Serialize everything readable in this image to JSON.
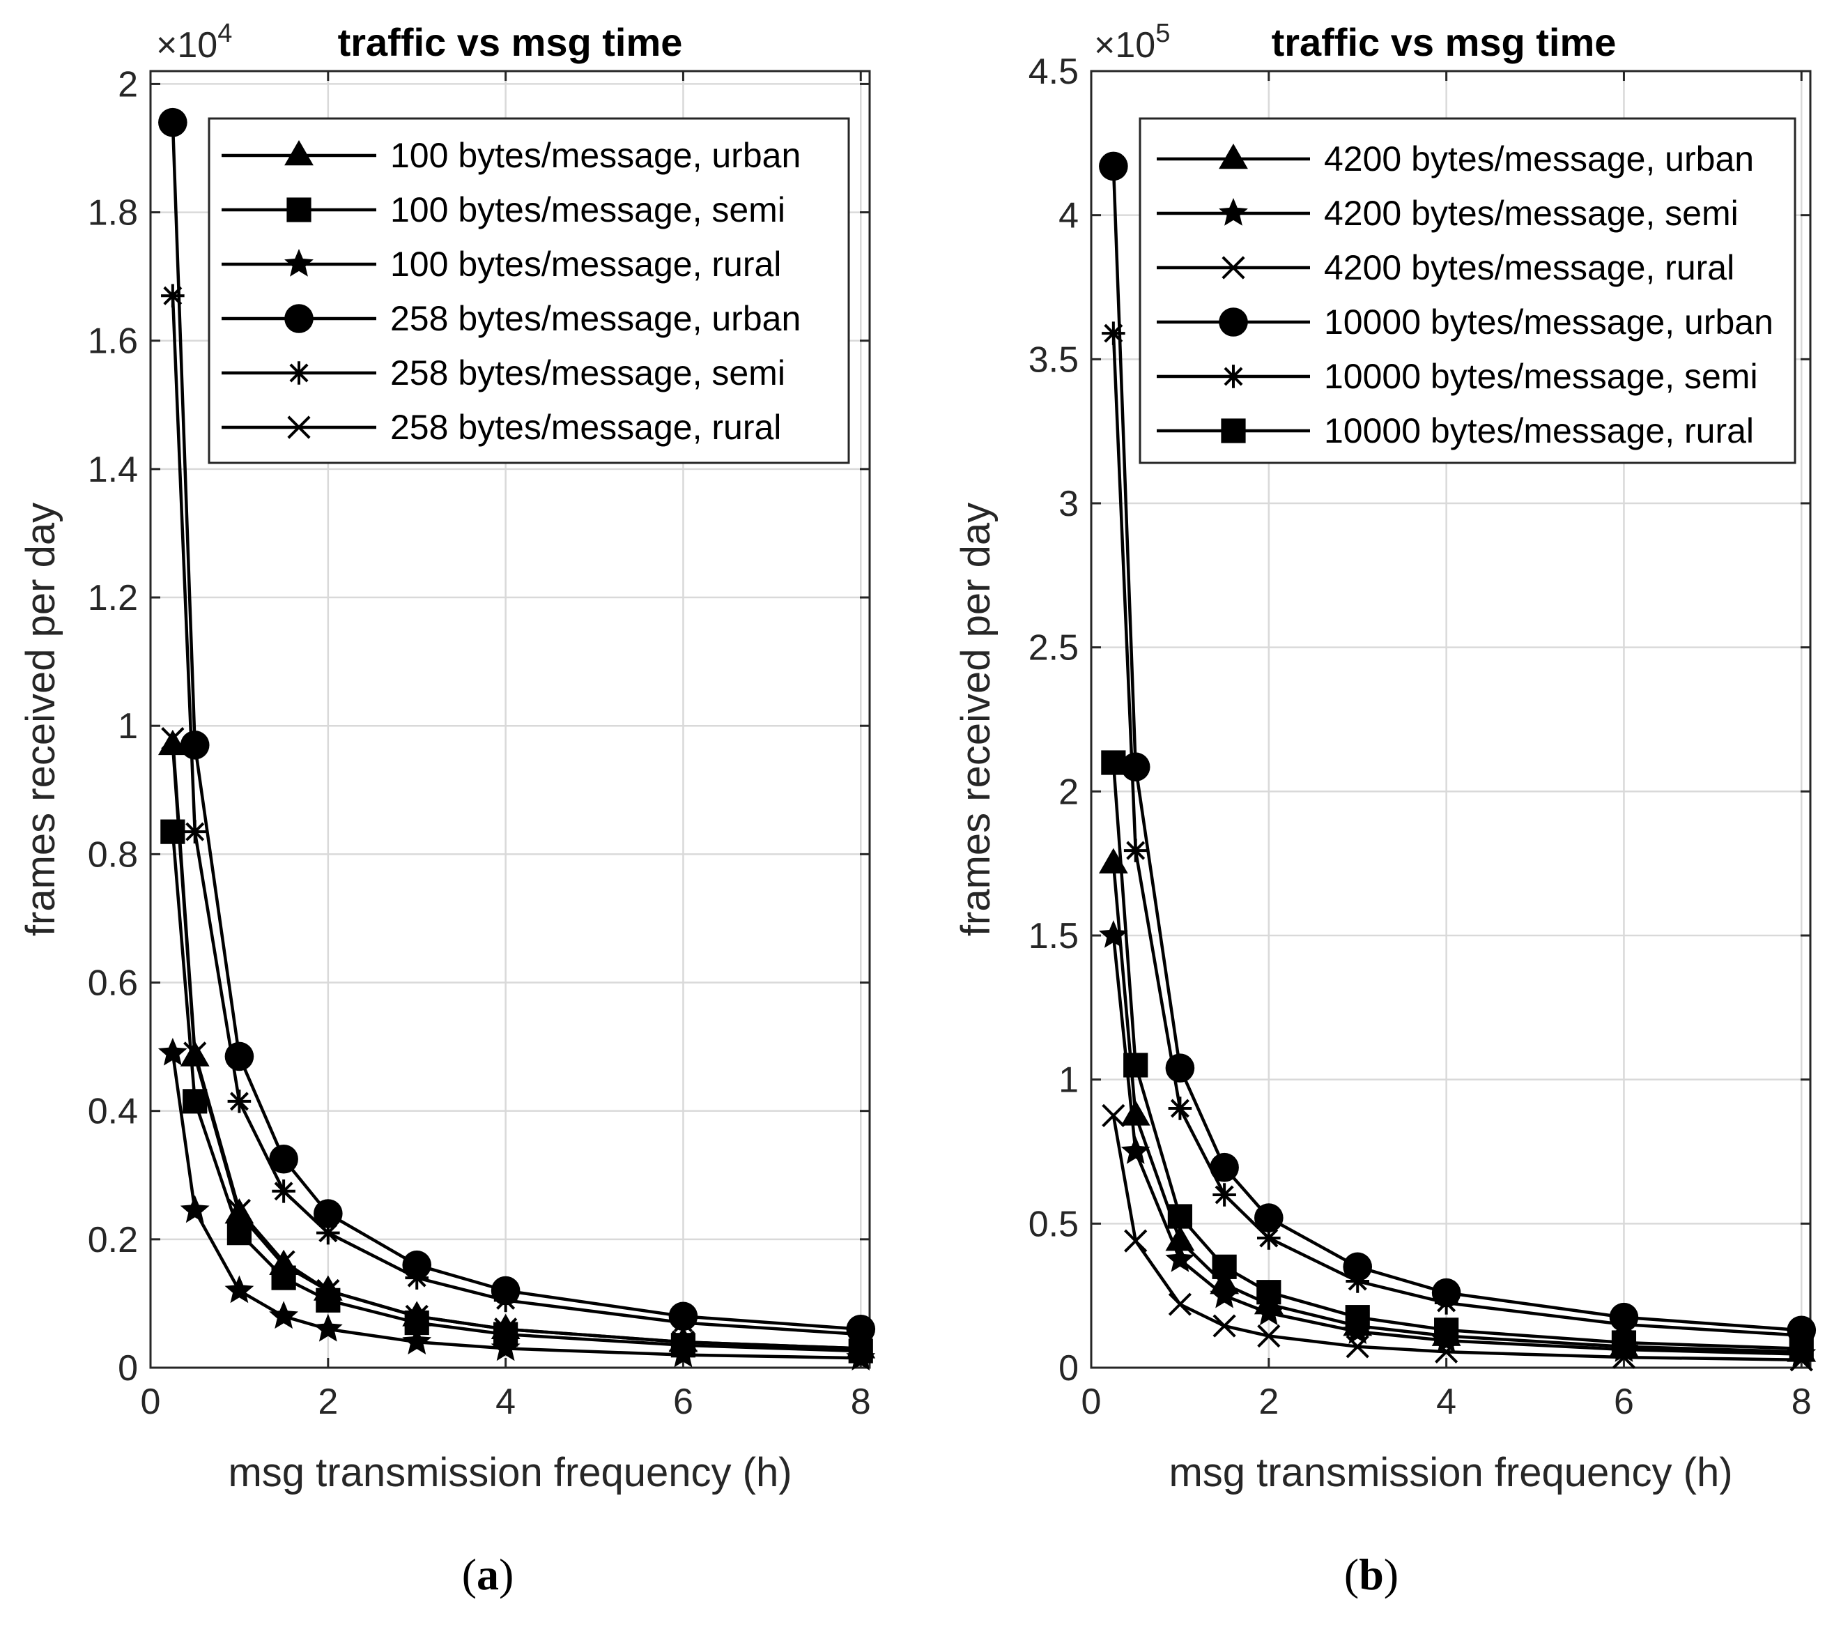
{
  "chart_data": [
    {
      "type": "line",
      "panel_label": "a",
      "title": "traffic vs msg time",
      "xlabel": "msg transmission frequency (h)",
      "ylabel": "frames received per day",
      "y_multiplier_base": "×10",
      "y_multiplier_exp": "4",
      "xlim": [
        0,
        8.1
      ],
      "ylim": [
        0,
        2.02
      ],
      "xticks": [
        0,
        2,
        4,
        6,
        8
      ],
      "xtick_labels": [
        "0",
        "2",
        "4",
        "6",
        "8"
      ],
      "yticks": [
        0,
        0.2,
        0.4,
        0.6,
        0.8,
        1,
        1.2,
        1.4,
        1.6,
        1.8,
        2
      ],
      "ytick_labels": [
        "0",
        "0.2",
        "0.4",
        "0.6",
        "0.8",
        "1",
        "1.2",
        "1.4",
        "1.6",
        "1.8",
        "2"
      ],
      "grid": true,
      "legend_position": "top-right",
      "x": [
        0.25,
        0.5,
        1,
        1.5,
        2,
        3,
        4,
        6,
        8
      ],
      "series": [
        {
          "name": "100 bytes/message, urban",
          "marker": "triangle",
          "values": [
            0.97,
            0.485,
            0.24,
            0.16,
            0.12,
            0.08,
            0.06,
            0.04,
            0.03
          ]
        },
        {
          "name": "100 bytes/message, semi",
          "marker": "square",
          "values": [
            0.835,
            0.415,
            0.21,
            0.14,
            0.105,
            0.07,
            0.052,
            0.035,
            0.026
          ]
        },
        {
          "name": "100 bytes/message, rural",
          "marker": "star",
          "values": [
            0.49,
            0.245,
            0.12,
            0.08,
            0.06,
            0.04,
            0.03,
            0.02,
            0.015
          ]
        },
        {
          "name": "258 bytes/message, urban",
          "marker": "circle",
          "values": [
            1.94,
            0.97,
            0.485,
            0.325,
            0.24,
            0.16,
            0.12,
            0.08,
            0.06
          ]
        },
        {
          "name": "258 bytes/message, semi",
          "marker": "asterisk",
          "values": [
            1.67,
            0.835,
            0.415,
            0.275,
            0.21,
            0.14,
            0.105,
            0.07,
            0.052
          ]
        },
        {
          "name": "258 bytes/message, rural",
          "marker": "x",
          "values": [
            0.98,
            0.49,
            0.245,
            0.165,
            0.12,
            0.08,
            0.06,
            0.04,
            0.03
          ]
        }
      ]
    },
    {
      "type": "line",
      "panel_label": "b",
      "title": "traffic vs msg time",
      "xlabel": "msg transmission frequency (h)",
      "ylabel": "frames received per day",
      "y_multiplier_base": "×10",
      "y_multiplier_exp": "5",
      "xlim": [
        0,
        8.1
      ],
      "ylim": [
        0,
        4.5
      ],
      "xticks": [
        0,
        2,
        4,
        6,
        8
      ],
      "xtick_labels": [
        "0",
        "2",
        "4",
        "6",
        "8"
      ],
      "yticks": [
        0,
        0.5,
        1,
        1.5,
        2,
        2.5,
        3,
        3.5,
        4,
        4.5
      ],
      "ytick_labels": [
        "0",
        "0.5",
        "1",
        "1.5",
        "2",
        "2.5",
        "3",
        "3.5",
        "4",
        "4.5"
      ],
      "grid": true,
      "legend_position": "top-right",
      "x": [
        0.25,
        0.5,
        1,
        1.5,
        2,
        3,
        4,
        6,
        8
      ],
      "series": [
        {
          "name": "4200 bytes/message, urban",
          "marker": "triangle",
          "values": [
            1.75,
            0.875,
            0.44,
            0.29,
            0.22,
            0.145,
            0.11,
            0.073,
            0.055
          ]
        },
        {
          "name": "4200 bytes/message, semi",
          "marker": "star",
          "values": [
            1.5,
            0.75,
            0.375,
            0.25,
            0.19,
            0.125,
            0.094,
            0.063,
            0.047
          ]
        },
        {
          "name": "4200 bytes/message, rural",
          "marker": "x",
          "values": [
            0.875,
            0.44,
            0.22,
            0.145,
            0.11,
            0.073,
            0.055,
            0.036,
            0.027
          ]
        },
        {
          "name": "10000 bytes/message, urban",
          "marker": "circle",
          "values": [
            4.17,
            2.085,
            1.04,
            0.695,
            0.52,
            0.35,
            0.26,
            0.175,
            0.13
          ]
        },
        {
          "name": "10000 bytes/message, semi",
          "marker": "asterisk",
          "values": [
            3.59,
            1.795,
            0.9,
            0.6,
            0.45,
            0.3,
            0.225,
            0.15,
            0.112
          ]
        },
        {
          "name": "10000 bytes/message, rural",
          "marker": "square",
          "values": [
            2.1,
            1.05,
            0.525,
            0.35,
            0.262,
            0.175,
            0.131,
            0.087,
            0.066
          ]
        }
      ]
    }
  ],
  "captions": [
    {
      "open": "(",
      "letter": "a",
      "close": ")"
    },
    {
      "open": "(",
      "letter": "b",
      "close": ")"
    }
  ]
}
